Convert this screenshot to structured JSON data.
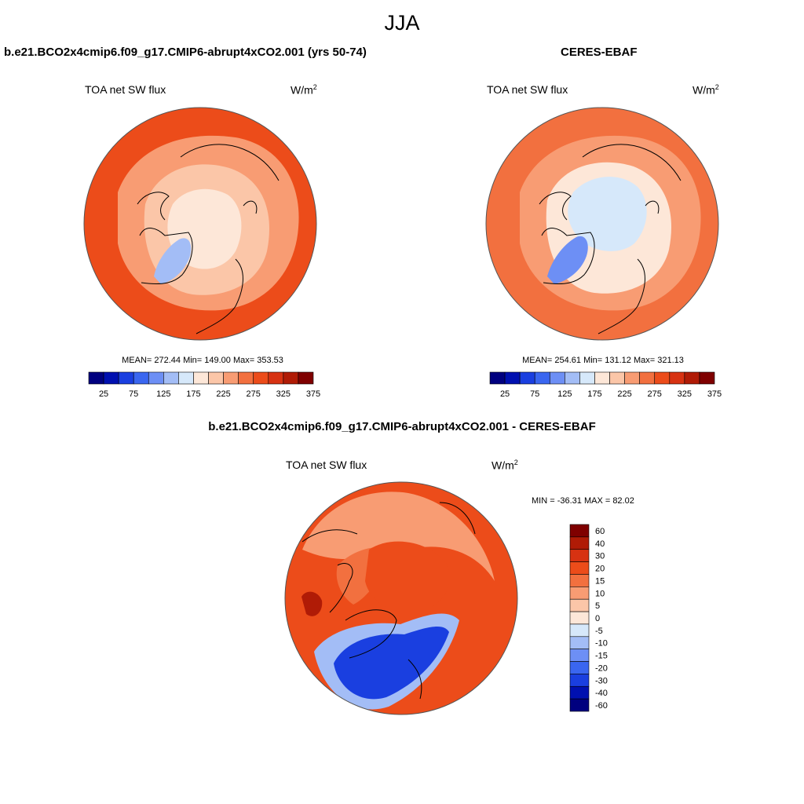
{
  "season": "JJA",
  "panels": [
    {
      "title": "b.e21.BCO2x4cmip6.f09_g17.CMIP6-abrupt4xCO2.001 (yrs 50-74)",
      "variable": "TOA net SW flux",
      "unit_base": "W/m",
      "unit_exp": "2",
      "stats": "MEAN= 272.44  Min= 149.00  Max= 353.53"
    },
    {
      "title": "CERES-EBAF",
      "variable": "TOA net SW flux",
      "unit_base": "W/m",
      "unit_exp": "2",
      "stats": "MEAN= 254.61  Min= 131.12  Max= 321.13"
    },
    {
      "title": "b.e21.BCO2x4cmip6.f09_g17.CMIP6-abrupt4xCO2.001 - CERES-EBAF",
      "variable": "TOA net SW flux",
      "unit_base": "W/m",
      "unit_exp": "2",
      "stats": "MIN = -36.31 MAX =  82.02"
    }
  ],
  "colorbar_abs": {
    "colors": [
      "#00007f",
      "#0010b0",
      "#1a3fe0",
      "#3a66f0",
      "#6d8ff5",
      "#a3bdf6",
      "#d6e8fa",
      "#fde7d8",
      "#fbc6a8",
      "#f89c73",
      "#f2703f",
      "#ec4c1a",
      "#d73212",
      "#b01b06",
      "#7f0000"
    ],
    "labels": [
      "25",
      "75",
      "125",
      "175",
      "225",
      "275",
      "325",
      "375"
    ]
  },
  "colorbar_diff": {
    "colors": [
      "#7f0000",
      "#b01b06",
      "#d73212",
      "#ec4c1a",
      "#f2703f",
      "#f89c73",
      "#fbc6a8",
      "#fde7d8",
      "#d6e8fa",
      "#a3bdf6",
      "#6d8ff5",
      "#3a66f0",
      "#1a3fe0",
      "#0010b0",
      "#00007f"
    ],
    "labels": [
      "60",
      "40",
      "30",
      "20",
      "15",
      "10",
      "5",
      "0",
      "-5",
      "-10",
      "-15",
      "-20",
      "-30",
      "-40",
      "-60"
    ]
  },
  "map_fields": {
    "model": {
      "pole": "#fde7d8",
      "inner": "#fbc6a8",
      "mid": "#f89c73",
      "outer": "#ec4c1a",
      "greenland": "#a3bdf6"
    },
    "obs": {
      "pole": "#d6e8fa",
      "inner": "#fde7d8",
      "mid": "#f89c73",
      "outer": "#f2703f",
      "greenland": "#6d8ff5"
    },
    "diff": {
      "pole": "#ec4c1a",
      "inner": "#f2703f",
      "mid": "#f89c73",
      "outer": "#ec4c1a",
      "atlantic": "#1a3fe0",
      "atlantic_edge": "#a3bdf6",
      "siberia": "#b01b06"
    }
  }
}
